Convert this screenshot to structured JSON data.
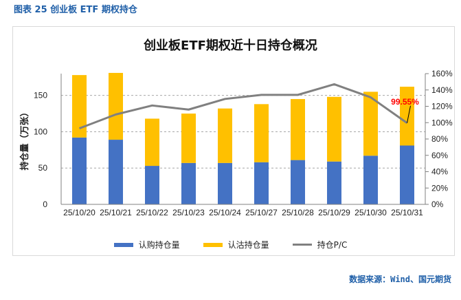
{
  "figure_title": "图表 25  创业板 ETF 期权持仓",
  "source": "数据来源：Wind、国元期货",
  "colors": {
    "call": "#4472c4",
    "put": "#ffc000",
    "pc": "#808080",
    "annotation": "#ff0000"
  },
  "chart_data": {
    "type": "bar",
    "title": "创业板ETF期权近十日持仓概况",
    "categories": [
      "25/10/20",
      "25/10/21",
      "25/10/22",
      "25/10/23",
      "25/10/24",
      "25/10/27",
      "25/10/28",
      "25/10/29",
      "25/10/30",
      "25/10/31"
    ],
    "series": [
      {
        "name": "认购持仓量",
        "type": "bar",
        "stack": "oi",
        "axis": "left",
        "values": [
          92,
          89,
          53,
          57,
          57,
          58,
          61,
          59,
          67,
          81
        ]
      },
      {
        "name": "认沽持仓量",
        "type": "bar",
        "stack": "oi",
        "axis": "left",
        "values": [
          86,
          92,
          65,
          68,
          75,
          80,
          84,
          89,
          88,
          81
        ]
      },
      {
        "name": "持仓P/C",
        "type": "line",
        "axis": "right",
        "values": [
          93,
          110,
          121,
          116,
          129,
          134,
          134,
          147,
          131,
          99.55
        ]
      }
    ],
    "ylabel": "持仓量（万张）",
    "ylim": [
      0,
      180
    ],
    "yticks": [
      0,
      50,
      100,
      150
    ],
    "y2lim": [
      0,
      160
    ],
    "y2ticks": [
      "0%",
      "20%",
      "40%",
      "60%",
      "80%",
      "100%",
      "120%",
      "140%",
      "160%"
    ],
    "annotation": {
      "category": "25/10/31",
      "text": "99.55%"
    },
    "grid": true,
    "legend": "bottom"
  }
}
